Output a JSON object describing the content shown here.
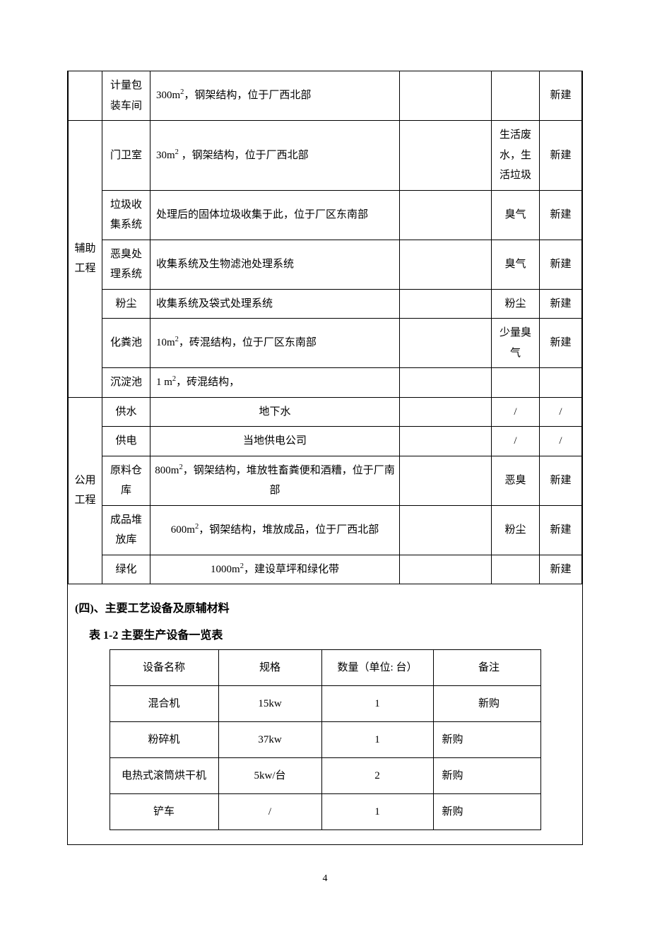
{
  "table1": {
    "groups": [
      {
        "type": "",
        "rows": [
          {
            "name": "计量包装车间",
            "desc": "300m²，钢架结构，位于厂西北部",
            "desc_align": "left",
            "emit": "",
            "status": "新建"
          }
        ]
      },
      {
        "type": "辅助工程",
        "rows": [
          {
            "name": "门卫室",
            "desc": "30m² ，钢架结构，位于厂西北部",
            "desc_align": "left",
            "emit": "生活废水，生活垃圾",
            "status": "新建"
          },
          {
            "name": "垃圾收集系统",
            "desc": "处理后的固体垃圾收集于此，位于厂区东南部",
            "desc_align": "left",
            "emit": "臭气",
            "status": "新建"
          },
          {
            "name": "恶臭处理系统",
            "desc": "收集系统及生物滤池处理系统",
            "desc_align": "left",
            "emit": "臭气",
            "status": "新建"
          },
          {
            "name": "粉尘",
            "desc": "收集系统及袋式处理系统",
            "desc_align": "left",
            "emit": "粉尘",
            "status": "新建"
          },
          {
            "name": "化粪池",
            "desc": "10m²，砖混结构，位于厂区东南部",
            "desc_align": "left",
            "emit": "少量臭气",
            "status": "新建"
          },
          {
            "name": "沉淀池",
            "desc": "1 m²，砖混结构，",
            "desc_align": "left",
            "emit": "",
            "status": ""
          }
        ]
      },
      {
        "type": "公用工程",
        "rows": [
          {
            "name": "供水",
            "desc": "地下水",
            "desc_align": "center",
            "emit": "/",
            "status": "/"
          },
          {
            "name": "供电",
            "desc": "当地供电公司",
            "desc_align": "center",
            "emit": "/",
            "status": "/"
          },
          {
            "name": "原料仓库",
            "desc": "800m²，钢架结构，堆放牲畜粪便和酒糟，位于厂南部",
            "desc_align": "center",
            "emit": "恶臭",
            "status": "新建"
          },
          {
            "name": "成品堆放库",
            "desc": "600m²，钢架结构，堆放成品，位于厂西北部",
            "desc_align": "center",
            "emit": "粉尘",
            "status": "新建"
          },
          {
            "name": "绿化",
            "desc": "1000m²，建设草坪和绿化带",
            "desc_align": "center",
            "emit": "",
            "status": "新建"
          }
        ]
      }
    ]
  },
  "section4_heading": "(四)、主要工艺设备及原辅材料",
  "table2_caption": "表 1-2 主要生产设备一览表",
  "table2": {
    "headers": {
      "name": "设备名称",
      "spec": "规格",
      "qty": "数量（单位: 台）",
      "note": "备注"
    },
    "rows": [
      {
        "name": "混合机",
        "spec": "15kw",
        "qty": "1",
        "note": "新购",
        "note_align": "center"
      },
      {
        "name": "粉碎机",
        "spec": "37kw",
        "qty": "1",
        "note": "新购",
        "note_align": "left"
      },
      {
        "name": "电热式滚筒烘干机",
        "spec": "5kw/台",
        "qty": "2",
        "note": "新购",
        "note_align": "left",
        "note_valign": "top"
      },
      {
        "name": "铲车",
        "spec": "/",
        "qty": "1",
        "note": "新购",
        "note_align": "left"
      }
    ]
  },
  "page_number": "4"
}
